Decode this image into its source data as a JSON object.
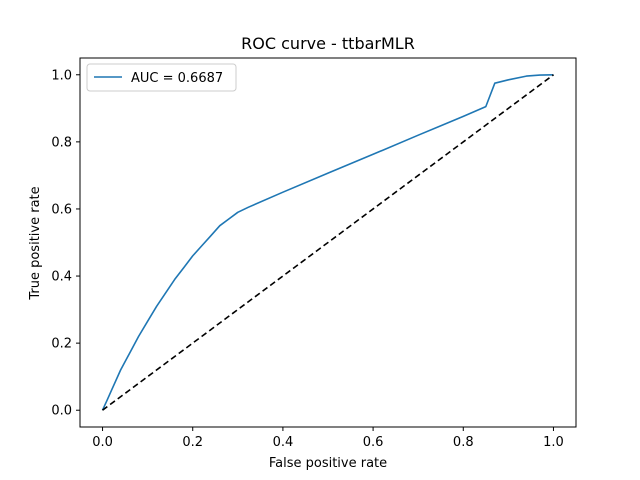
{
  "chart_data": {
    "type": "line",
    "title": "ROC curve - ttbarMLR",
    "xlabel": "False positive rate",
    "ylabel": "True positive rate",
    "xlim": [
      -0.05,
      1.05
    ],
    "ylim": [
      -0.05,
      1.05
    ],
    "xticks": [
      "0.0",
      "0.2",
      "0.4",
      "0.6",
      "0.8",
      "1.0"
    ],
    "yticks": [
      "0.0",
      "0.2",
      "0.4",
      "0.6",
      "0.8",
      "1.0"
    ],
    "grid": false,
    "legend": {
      "placement": "top-left",
      "entries": [
        "AUC = 0.6687"
      ]
    },
    "series": [
      {
        "name": "AUC = 0.6687",
        "color": "#1f77b4",
        "style": "solid",
        "x": [
          0.0,
          0.01,
          0.02,
          0.04,
          0.06,
          0.08,
          0.1,
          0.12,
          0.14,
          0.16,
          0.18,
          0.2,
          0.22,
          0.24,
          0.26,
          0.28,
          0.3,
          0.323,
          0.4,
          0.5,
          0.6,
          0.7,
          0.8,
          0.85,
          0.87,
          0.9,
          0.94,
          0.97,
          1.0
        ],
        "y": [
          0.0,
          0.03,
          0.06,
          0.12,
          0.17,
          0.22,
          0.265,
          0.31,
          0.35,
          0.39,
          0.425,
          0.46,
          0.49,
          0.52,
          0.55,
          0.57,
          0.59,
          0.605,
          0.65,
          0.707,
          0.763,
          0.82,
          0.876,
          0.905,
          0.975,
          0.985,
          0.996,
          0.999,
          1.0
        ]
      },
      {
        "name": "",
        "color": "#000000",
        "style": "dashed",
        "x": [
          0.0,
          1.0
        ],
        "y": [
          0.0,
          1.0
        ]
      }
    ]
  }
}
